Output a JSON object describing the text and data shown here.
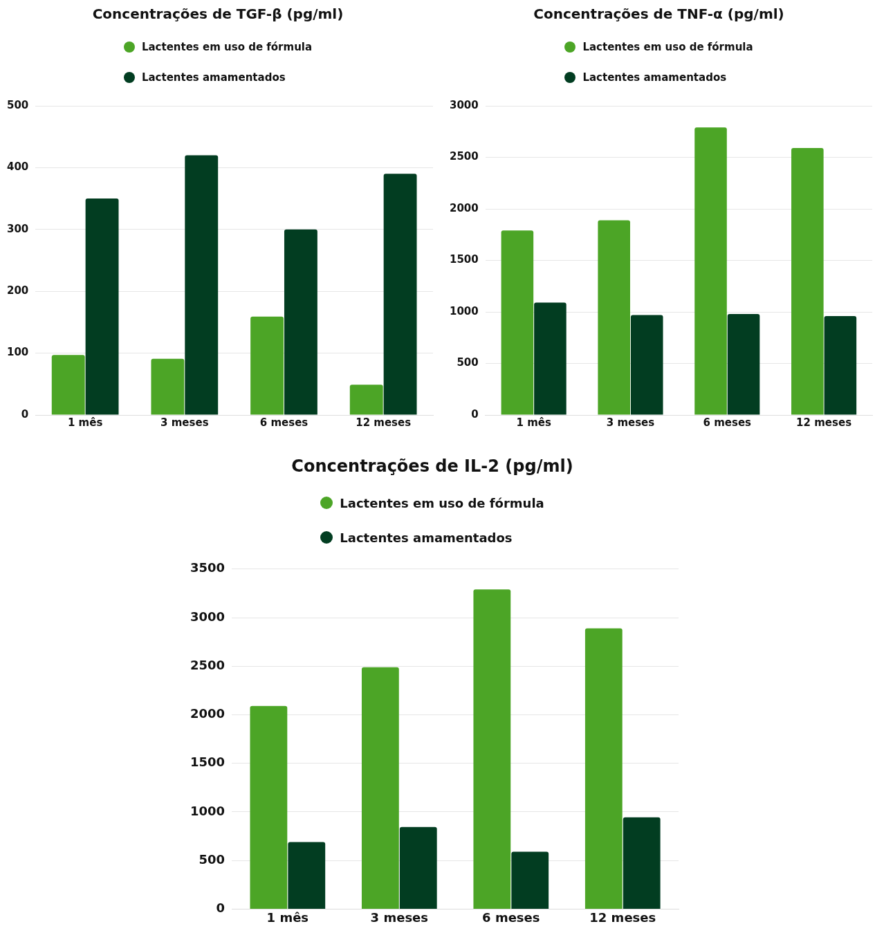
{
  "chart_data": [
    {
      "type": "bar",
      "title": "Concentrações de TGF-β (pg/ml)",
      "categories": [
        "1 mês",
        "3 meses",
        "6 meses",
        "12 meses"
      ],
      "series": [
        {
          "name": "Lactentes em uso de fórmula",
          "color": "#4ca526",
          "values": [
            97,
            91,
            159,
            49
          ]
        },
        {
          "name": "Lactentes amamentados",
          "color": "#023d21",
          "values": [
            350,
            420,
            300,
            390
          ]
        }
      ],
      "ylim": [
        0,
        500
      ],
      "yticks": [
        0,
        100,
        200,
        300,
        400,
        500
      ],
      "grid": "y",
      "legend": "top"
    },
    {
      "type": "bar",
      "title": "Concentrações de TNF-α (pg/ml)",
      "categories": [
        "1 mês",
        "3 meses",
        "6 meses",
        "12 meses"
      ],
      "series": [
        {
          "name": "Lactentes em uso de fórmula",
          "color": "#4ca526",
          "values": [
            1790,
            1890,
            2790,
            2590
          ]
        },
        {
          "name": "Lactentes amamentados",
          "color": "#023d21",
          "values": [
            1090,
            970,
            980,
            960
          ]
        }
      ],
      "ylim": [
        0,
        3000
      ],
      "yticks": [
        0,
        500,
        1000,
        1500,
        2000,
        2500,
        3000
      ],
      "grid": "y",
      "legend": "top"
    },
    {
      "type": "bar",
      "title": "Concentrações de IL-2 (pg/ml)",
      "categories": [
        "1 mês",
        "3 meses",
        "6 meses",
        "12 meses"
      ],
      "series": [
        {
          "name": "Lactentes em uso de fórmula",
          "color": "#4ca526",
          "values": [
            2090,
            2490,
            3290,
            2890
          ]
        },
        {
          "name": "Lactentes amamentados",
          "color": "#023d21",
          "values": [
            690,
            845,
            590,
            945
          ]
        }
      ],
      "ylim": [
        0,
        3500
      ],
      "yticks": [
        0,
        500,
        1000,
        1500,
        2000,
        2500,
        3000,
        3500
      ],
      "grid": "y",
      "legend": "top"
    }
  ]
}
